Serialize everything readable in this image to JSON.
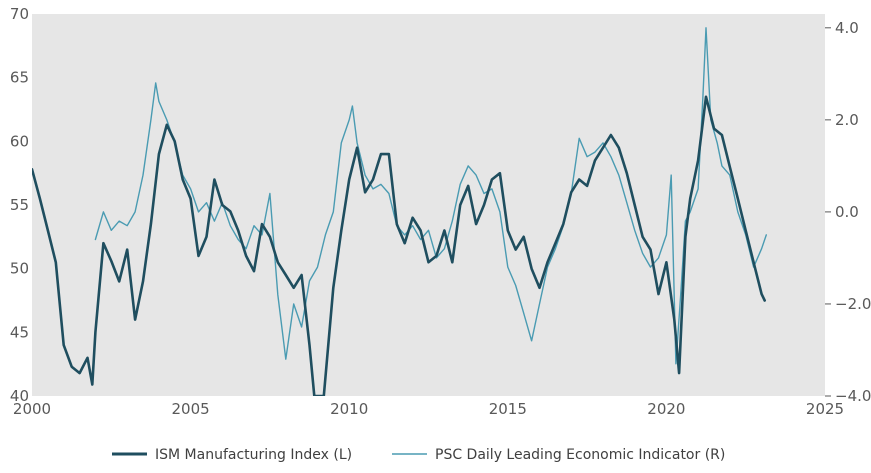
{
  "chart_data": {
    "type": "line",
    "title": "",
    "xlabel": "",
    "ylabel_left": "",
    "ylabel_right": "",
    "xlim": [
      2000,
      2025
    ],
    "ylim_left": [
      40,
      70
    ],
    "ylim_right": [
      -4.0,
      4.3
    ],
    "x_ticks": [
      2000,
      2005,
      2010,
      2015,
      2020,
      2025
    ],
    "x_tick_labels": [
      "2000",
      "2005",
      "2010",
      "2015",
      "2020",
      "2025"
    ],
    "y_left_ticks": [
      40,
      45,
      50,
      55,
      60,
      65,
      70
    ],
    "y_left_tick_labels": [
      "40",
      "45",
      "50",
      "55",
      "60",
      "65",
      "70"
    ],
    "y_right_ticks": [
      -4.0,
      -2.0,
      0.0,
      2.0,
      4.0
    ],
    "y_right_tick_labels": [
      "−4.0",
      "−2.0",
      "0.0",
      "2.0",
      "4.0"
    ],
    "grid": false,
    "plot_background": "#e6e6e6",
    "legend_position": "bottom-center",
    "series": [
      {
        "name": "ISM Manufacturing Index (L)",
        "axis": "left",
        "color": "#1f4e5f",
        "points": [
          [
            2000.0,
            57.8
          ],
          [
            2000.25,
            55.5
          ],
          [
            2000.5,
            53.0
          ],
          [
            2000.75,
            50.5
          ],
          [
            2001.0,
            44.0
          ],
          [
            2001.25,
            42.3
          ],
          [
            2001.5,
            41.8
          ],
          [
            2001.75,
            43.0
          ],
          [
            2001.9,
            40.9
          ],
          [
            2002.0,
            45.0
          ],
          [
            2002.25,
            52.0
          ],
          [
            2002.5,
            50.6
          ],
          [
            2002.75,
            49.0
          ],
          [
            2003.0,
            51.5
          ],
          [
            2003.25,
            46.0
          ],
          [
            2003.5,
            49.0
          ],
          [
            2003.75,
            53.5
          ],
          [
            2004.0,
            59.0
          ],
          [
            2004.25,
            61.3
          ],
          [
            2004.5,
            60.0
          ],
          [
            2004.75,
            57.0
          ],
          [
            2005.0,
            55.5
          ],
          [
            2005.25,
            51.0
          ],
          [
            2005.5,
            52.5
          ],
          [
            2005.75,
            57.0
          ],
          [
            2006.0,
            55.0
          ],
          [
            2006.25,
            54.5
          ],
          [
            2006.5,
            53.0
          ],
          [
            2006.75,
            51.0
          ],
          [
            2007.0,
            49.8
          ],
          [
            2007.25,
            53.5
          ],
          [
            2007.5,
            52.5
          ],
          [
            2007.75,
            50.5
          ],
          [
            2008.0,
            49.5
          ],
          [
            2008.25,
            48.5
          ],
          [
            2008.5,
            49.5
          ],
          [
            2008.75,
            44.0
          ],
          [
            2008.9,
            40.0
          ],
          [
            2009.2,
            40.0
          ],
          [
            2009.5,
            48.5
          ],
          [
            2009.75,
            53.0
          ],
          [
            2010.0,
            57.0
          ],
          [
            2010.25,
            59.5
          ],
          [
            2010.5,
            56.0
          ],
          [
            2010.75,
            57.0
          ],
          [
            2011.0,
            59.0
          ],
          [
            2011.25,
            59.0
          ],
          [
            2011.5,
            53.5
          ],
          [
            2011.75,
            52.0
          ],
          [
            2012.0,
            54.0
          ],
          [
            2012.25,
            53.0
          ],
          [
            2012.5,
            50.5
          ],
          [
            2012.75,
            51.0
          ],
          [
            2013.0,
            53.0
          ],
          [
            2013.25,
            50.5
          ],
          [
            2013.5,
            55.0
          ],
          [
            2013.75,
            56.5
          ],
          [
            2014.0,
            53.5
          ],
          [
            2014.25,
            55.0
          ],
          [
            2014.5,
            57.0
          ],
          [
            2014.75,
            57.5
          ],
          [
            2015.0,
            53.0
          ],
          [
            2015.25,
            51.5
          ],
          [
            2015.5,
            52.5
          ],
          [
            2015.75,
            50.0
          ],
          [
            2016.0,
            48.5
          ],
          [
            2016.25,
            50.5
          ],
          [
            2016.5,
            52.0
          ],
          [
            2016.75,
            53.5
          ],
          [
            2017.0,
            56.0
          ],
          [
            2017.25,
            57.0
          ],
          [
            2017.5,
            56.5
          ],
          [
            2017.75,
            58.5
          ],
          [
            2018.0,
            59.5
          ],
          [
            2018.25,
            60.5
          ],
          [
            2018.5,
            59.5
          ],
          [
            2018.75,
            57.5
          ],
          [
            2019.0,
            55.0
          ],
          [
            2019.25,
            52.5
          ],
          [
            2019.5,
            51.5
          ],
          [
            2019.75,
            48.0
          ],
          [
            2020.0,
            50.5
          ],
          [
            2020.25,
            46.0
          ],
          [
            2020.4,
            41.8
          ],
          [
            2020.6,
            52.5
          ],
          [
            2020.75,
            55.5
          ],
          [
            2021.0,
            58.5
          ],
          [
            2021.25,
            63.5
          ],
          [
            2021.5,
            61.0
          ],
          [
            2021.75,
            60.5
          ],
          [
            2022.0,
            58.0
          ],
          [
            2022.25,
            55.5
          ],
          [
            2022.5,
            53.0
          ],
          [
            2022.75,
            50.5
          ],
          [
            2023.0,
            48.0
          ],
          [
            2023.1,
            47.5
          ]
        ]
      },
      {
        "name": "PSC Daily Leading Economic Indicator (R)",
        "axis": "right",
        "color": "#4a9bb2",
        "points": [
          [
            2002.0,
            -0.6
          ],
          [
            2002.25,
            0.0
          ],
          [
            2002.5,
            -0.4
          ],
          [
            2002.75,
            -0.2
          ],
          [
            2003.0,
            -0.3
          ],
          [
            2003.25,
            0.0
          ],
          [
            2003.5,
            0.8
          ],
          [
            2003.75,
            2.0
          ],
          [
            2003.9,
            2.8
          ],
          [
            2004.0,
            2.4
          ],
          [
            2004.25,
            2.0
          ],
          [
            2004.5,
            1.5
          ],
          [
            2004.75,
            0.8
          ],
          [
            2005.0,
            0.5
          ],
          [
            2005.25,
            0.0
          ],
          [
            2005.5,
            0.2
          ],
          [
            2005.75,
            -0.2
          ],
          [
            2006.0,
            0.2
          ],
          [
            2006.25,
            -0.3
          ],
          [
            2006.5,
            -0.6
          ],
          [
            2006.75,
            -0.8
          ],
          [
            2007.0,
            -0.3
          ],
          [
            2007.25,
            -0.5
          ],
          [
            2007.5,
            0.4
          ],
          [
            2007.75,
            -1.8
          ],
          [
            2008.0,
            -3.2
          ],
          [
            2008.25,
            -2.0
          ],
          [
            2008.5,
            -2.5
          ],
          [
            2008.75,
            -1.5
          ],
          [
            2009.0,
            -1.2
          ],
          [
            2009.25,
            -0.5
          ],
          [
            2009.5,
            0.0
          ],
          [
            2009.75,
            1.5
          ],
          [
            2010.0,
            2.0
          ],
          [
            2010.1,
            2.3
          ],
          [
            2010.25,
            1.5
          ],
          [
            2010.5,
            0.8
          ],
          [
            2010.75,
            0.5
          ],
          [
            2011.0,
            0.6
          ],
          [
            2011.25,
            0.4
          ],
          [
            2011.5,
            -0.3
          ],
          [
            2011.75,
            -0.5
          ],
          [
            2012.0,
            -0.3
          ],
          [
            2012.25,
            -0.6
          ],
          [
            2012.5,
            -0.4
          ],
          [
            2012.75,
            -1.0
          ],
          [
            2013.0,
            -0.8
          ],
          [
            2013.25,
            -0.2
          ],
          [
            2013.5,
            0.6
          ],
          [
            2013.75,
            1.0
          ],
          [
            2014.0,
            0.8
          ],
          [
            2014.25,
            0.4
          ],
          [
            2014.5,
            0.5
          ],
          [
            2014.75,
            0.0
          ],
          [
            2015.0,
            -1.2
          ],
          [
            2015.25,
            -1.6
          ],
          [
            2015.5,
            -2.2
          ],
          [
            2015.75,
            -2.8
          ],
          [
            2016.0,
            -2.0
          ],
          [
            2016.25,
            -1.2
          ],
          [
            2016.5,
            -0.8
          ],
          [
            2016.75,
            -0.3
          ],
          [
            2017.0,
            0.4
          ],
          [
            2017.25,
            1.6
          ],
          [
            2017.5,
            1.2
          ],
          [
            2017.75,
            1.3
          ],
          [
            2018.0,
            1.5
          ],
          [
            2018.25,
            1.2
          ],
          [
            2018.5,
            0.8
          ],
          [
            2018.75,
            0.2
          ],
          [
            2019.0,
            -0.4
          ],
          [
            2019.25,
            -0.9
          ],
          [
            2019.5,
            -1.2
          ],
          [
            2019.75,
            -1.0
          ],
          [
            2020.0,
            -0.5
          ],
          [
            2020.15,
            0.8
          ],
          [
            2020.3,
            -3.3
          ],
          [
            2020.45,
            -1.8
          ],
          [
            2020.6,
            -0.2
          ],
          [
            2020.75,
            0.0
          ],
          [
            2021.0,
            0.5
          ],
          [
            2021.15,
            2.5
          ],
          [
            2021.25,
            4.0
          ],
          [
            2021.4,
            2.0
          ],
          [
            2021.6,
            1.5
          ],
          [
            2021.75,
            1.0
          ],
          [
            2022.0,
            0.8
          ],
          [
            2022.25,
            0.0
          ],
          [
            2022.5,
            -0.5
          ],
          [
            2022.75,
            -1.2
          ],
          [
            2023.0,
            -0.8
          ],
          [
            2023.15,
            -0.5
          ]
        ]
      }
    ]
  }
}
